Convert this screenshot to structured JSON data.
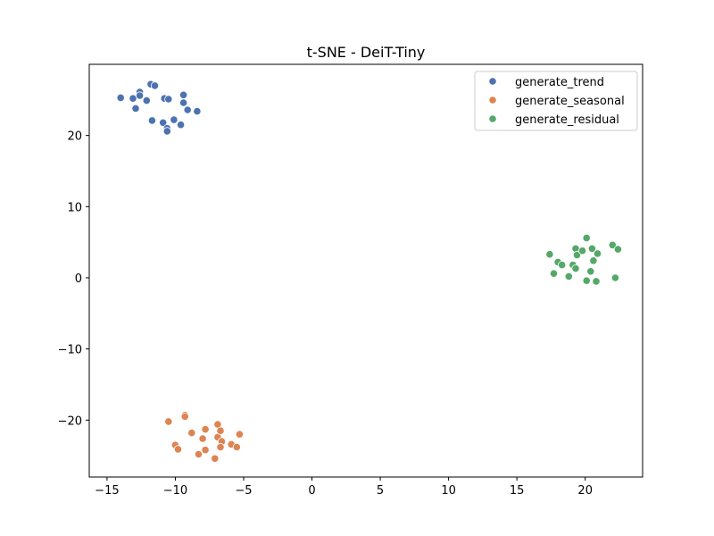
{
  "chart_data": {
    "type": "scatter",
    "title": "t-SNE - DeiT-Tiny",
    "xlabel": "",
    "ylabel": "",
    "xlim": [
      -16.3,
      24.2
    ],
    "ylim": [
      -28.0,
      30.0
    ],
    "xticks": [
      -15,
      -10,
      -5,
      0,
      5,
      10,
      15,
      20
    ],
    "xtick_labels": [
      "−15",
      "−10",
      "−5",
      "0",
      "5",
      "10",
      "15",
      "20"
    ],
    "yticks": [
      -20,
      -10,
      0,
      10,
      20
    ],
    "ytick_labels": [
      "−20",
      "−10",
      "0",
      "10",
      "20"
    ],
    "grid": false,
    "legend_position": "top-right",
    "series": [
      {
        "name": "generate_trend",
        "color": "#4c72b0",
        "points": [
          [
            -14.0,
            25.3
          ],
          [
            -13.1,
            25.2
          ],
          [
            -12.9,
            23.8
          ],
          [
            -12.6,
            26.1
          ],
          [
            -12.6,
            25.6
          ],
          [
            -12.1,
            24.9
          ],
          [
            -11.8,
            27.2
          ],
          [
            -11.5,
            27.0
          ],
          [
            -11.7,
            22.1
          ],
          [
            -10.9,
            21.8
          ],
          [
            -10.8,
            25.2
          ],
          [
            -10.5,
            25.1
          ],
          [
            -10.6,
            21.0
          ],
          [
            -10.6,
            20.6
          ],
          [
            -10.1,
            22.2
          ],
          [
            -9.6,
            21.5
          ],
          [
            -9.4,
            25.7
          ],
          [
            -9.4,
            24.6
          ],
          [
            -9.1,
            23.6
          ],
          [
            -8.4,
            23.4
          ]
        ]
      },
      {
        "name": "generate_seasonal",
        "color": "#dd8452",
        "points": [
          [
            -10.5,
            -20.2
          ],
          [
            -9.3,
            -19.3
          ],
          [
            -9.3,
            -19.5
          ],
          [
            -10.0,
            -23.5
          ],
          [
            -9.8,
            -24.1
          ],
          [
            -8.8,
            -21.8
          ],
          [
            -8.3,
            -24.8
          ],
          [
            -8.0,
            -22.6
          ],
          [
            -7.8,
            -21.3
          ],
          [
            -7.8,
            -24.2
          ],
          [
            -7.1,
            -25.4
          ],
          [
            -6.9,
            -20.6
          ],
          [
            -6.9,
            -22.4
          ],
          [
            -6.7,
            -21.5
          ],
          [
            -6.6,
            -23.0
          ],
          [
            -6.7,
            -23.8
          ],
          [
            -5.9,
            -23.4
          ],
          [
            -5.5,
            -23.8
          ],
          [
            -5.3,
            -22.0
          ]
        ]
      },
      {
        "name": "generate_residual",
        "color": "#55a868",
        "points": [
          [
            17.4,
            3.3
          ],
          [
            17.7,
            0.6
          ],
          [
            18.0,
            2.2
          ],
          [
            18.3,
            1.8
          ],
          [
            18.8,
            0.2
          ],
          [
            19.1,
            1.8
          ],
          [
            19.3,
            4.1
          ],
          [
            19.3,
            1.3
          ],
          [
            19.4,
            3.2
          ],
          [
            19.8,
            3.8
          ],
          [
            20.1,
            5.6
          ],
          [
            20.1,
            -0.4
          ],
          [
            20.4,
            0.9
          ],
          [
            20.5,
            4.1
          ],
          [
            20.6,
            2.4
          ],
          [
            20.8,
            -0.5
          ],
          [
            20.9,
            3.4
          ],
          [
            22.0,
            4.6
          ],
          [
            22.2,
            0.0
          ],
          [
            22.4,
            4.0
          ]
        ]
      }
    ]
  }
}
